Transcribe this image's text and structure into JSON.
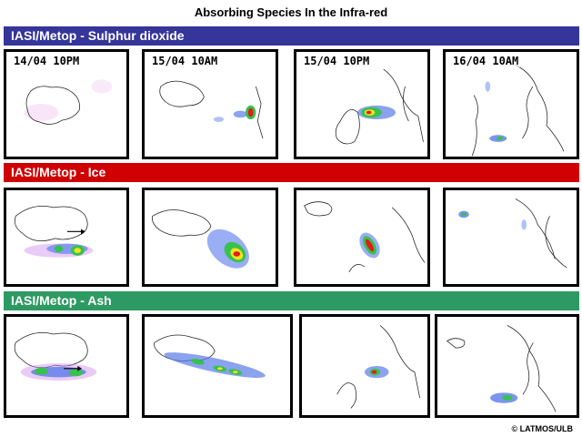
{
  "title": "Absorbing Species In the Infra-red",
  "rows": [
    {
      "label": "IASI/Metop - Sulphur dioxide",
      "color": "#35359a"
    },
    {
      "label": "IASI/Metop - Ice",
      "color": "#d10000"
    },
    {
      "label": "IASI/Metop - Ash",
      "color": "#2e9a63"
    }
  ],
  "dates": [
    "14/04 10PM",
    "15/04 10AM",
    "15/04 10PM",
    "16/04 10AM"
  ],
  "credit": "© LATMOS/ULB"
}
